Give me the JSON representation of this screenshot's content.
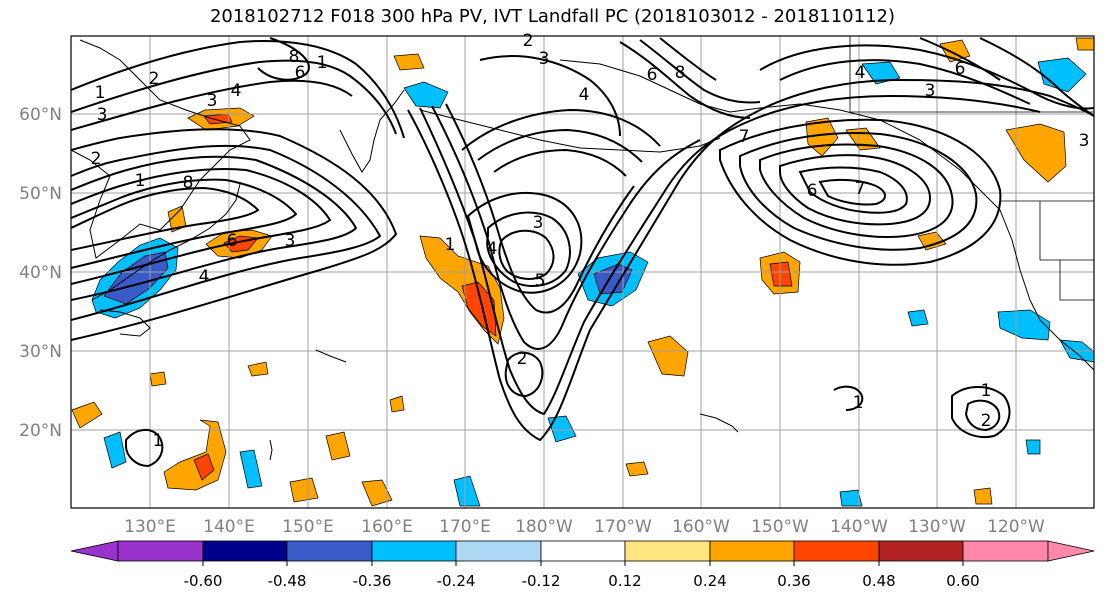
{
  "map": {
    "title": "2018102712 F018 300 hPa PV, IVT Landfall PC (2018103012 - 2018110112)",
    "latitude_labels": [
      "60°N",
      "50°N",
      "40°N",
      "30°N",
      "20°N"
    ],
    "longitude_labels": [
      "130°E",
      "140°E",
      "150°E",
      "160°E",
      "170°E",
      "180°W",
      "170°W",
      "160°W",
      "150°W",
      "140°W",
      "130°W",
      "120°W"
    ],
    "pv_contour_labels": [
      "1",
      "2",
      "3",
      "4",
      "5",
      "6",
      "7",
      "8"
    ],
    "colors": {
      "frame": "#000000",
      "grid": "#a0a0a0",
      "land": "#000000",
      "axis_label": "#808080"
    }
  },
  "colorbar": {
    "tick_labels": [
      "-0.60",
      "-0.48",
      "-0.36",
      "-0.24",
      "-0.12",
      "0.12",
      "0.24",
      "0.36",
      "0.48",
      "0.60"
    ],
    "bins": [
      {
        "range": "< -0.60",
        "color": "#9933cc"
      },
      {
        "range": "-0.60 to -0.48",
        "color": "#00008b"
      },
      {
        "range": "-0.48 to -0.36",
        "color": "#3a5bc7"
      },
      {
        "range": "-0.36 to -0.24",
        "color": "#00bfff"
      },
      {
        "range": "-0.24 to -0.12",
        "color": "#add8f5"
      },
      {
        "range": "-0.12 to 0.12",
        "color": "#ffffff"
      },
      {
        "range": "0.12 to 0.24",
        "color": "#ffe680"
      },
      {
        "range": "0.24 to 0.36",
        "color": "#ffa500"
      },
      {
        "range": "0.36 to 0.48",
        "color": "#ff4500"
      },
      {
        "range": "0.48 to 0.60",
        "color": "#b22222"
      },
      {
        "range": "> 0.60",
        "color": "#ff88aa"
      }
    ]
  }
}
